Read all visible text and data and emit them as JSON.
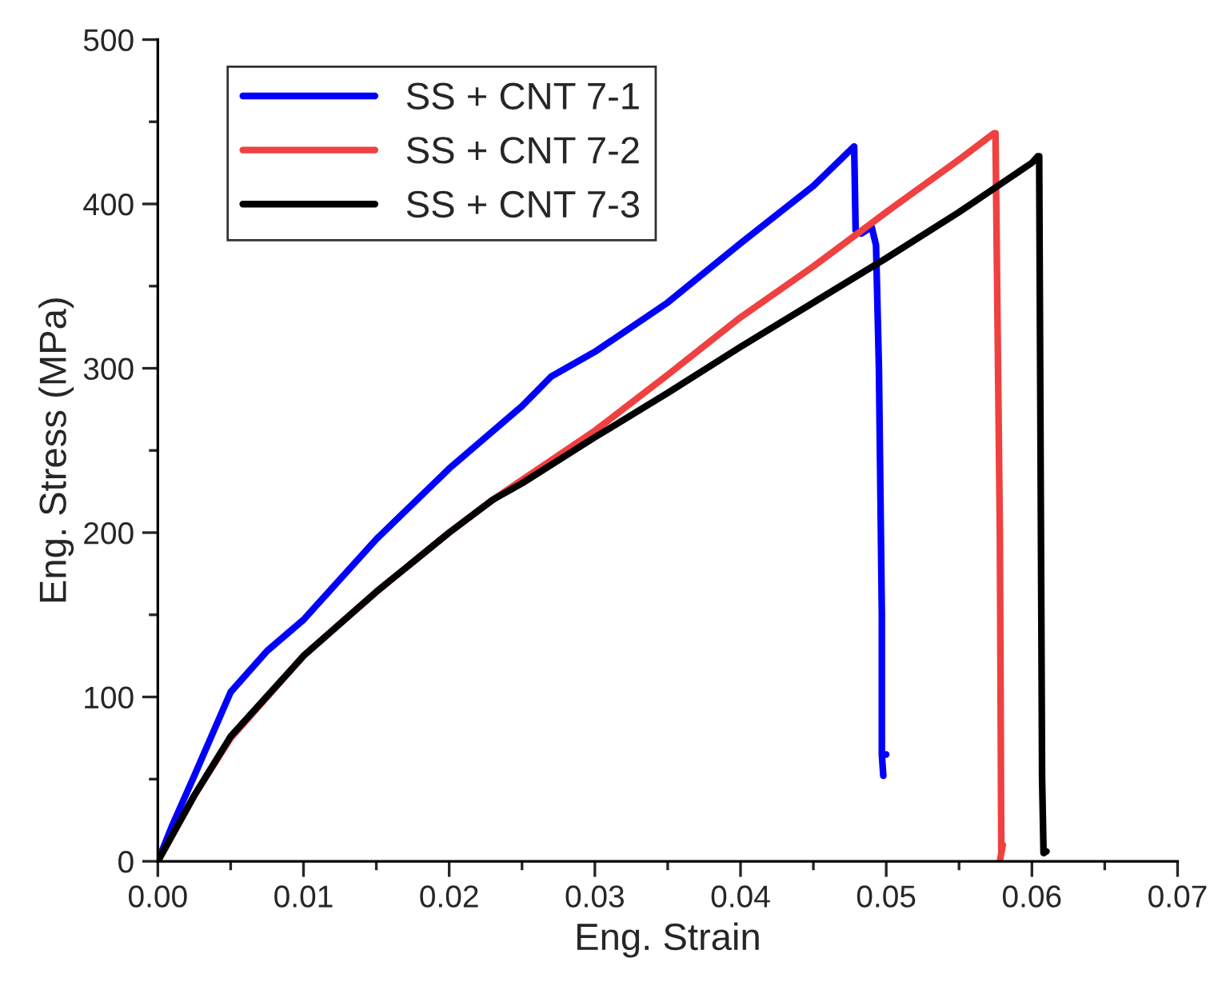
{
  "chart_data": {
    "type": "line",
    "xlabel": "Eng. Strain",
    "ylabel": "Eng. Stress (MPa)",
    "xlim": [
      0,
      0.07
    ],
    "ylim": [
      0,
      500
    ],
    "xticks": [
      {
        "value": 0,
        "label": "0.00"
      },
      {
        "value": 0.01,
        "label": "0.01"
      },
      {
        "value": 0.02,
        "label": "0.02"
      },
      {
        "value": 0.03,
        "label": "0.03"
      },
      {
        "value": 0.04,
        "label": "0.04"
      },
      {
        "value": 0.05,
        "label": "0.05"
      },
      {
        "value": 0.06,
        "label": "0.06"
      },
      {
        "value": 0.07,
        "label": "0.07"
      }
    ],
    "yticks": [
      0,
      100,
      200,
      300,
      400,
      500
    ],
    "legend": "top left",
    "grid": false,
    "line_style": "solid",
    "marker": "none",
    "series": [
      {
        "name": "SS + CNT 7-1",
        "color": "#0000ff",
        "x": [
          0,
          0.001,
          0.0025,
          0.005,
          0.0075,
          0.01,
          0.015,
          0.02,
          0.025,
          0.027,
          0.03,
          0.035,
          0.04,
          0.045,
          0.0478,
          0.0479,
          0.0483,
          0.049,
          0.0493,
          0.0495,
          0.0497,
          0.0497,
          0.0498,
          0.0497,
          0.05
        ],
        "values": [
          0,
          22,
          52,
          103,
          128,
          147,
          196,
          239,
          277,
          295,
          310,
          340,
          376,
          411,
          435,
          384,
          382,
          386,
          375,
          300,
          150,
          65,
          52,
          65,
          65
        ]
      },
      {
        "name": "SS + CNT 7-2",
        "color": "#f04040",
        "x": [
          0,
          0.0025,
          0.005,
          0.01,
          0.015,
          0.02,
          0.023,
          0.025,
          0.03,
          0.035,
          0.04,
          0.045,
          0.05,
          0.055,
          0.0574,
          0.0575,
          0.0578,
          0.0579,
          0.058,
          0.0578
        ],
        "values": [
          0,
          40,
          75,
          125,
          164,
          200,
          220,
          232,
          262,
          296,
          331,
          362,
          395,
          427,
          443,
          443,
          200,
          5,
          10,
          0
        ]
      },
      {
        "name": "SS + CNT 7-3",
        "color": "#000000",
        "x": [
          0,
          0.0025,
          0.005,
          0.01,
          0.015,
          0.02,
          0.023,
          0.025,
          0.03,
          0.035,
          0.04,
          0.045,
          0.05,
          0.055,
          0.06,
          0.0604,
          0.0605,
          0.0607,
          0.0608,
          0.061
        ],
        "values": [
          0,
          40,
          76,
          125,
          164,
          200,
          220,
          230,
          258,
          285,
          313,
          340,
          367,
          395,
          425,
          429,
          429,
          50,
          5,
          6
        ]
      }
    ]
  }
}
